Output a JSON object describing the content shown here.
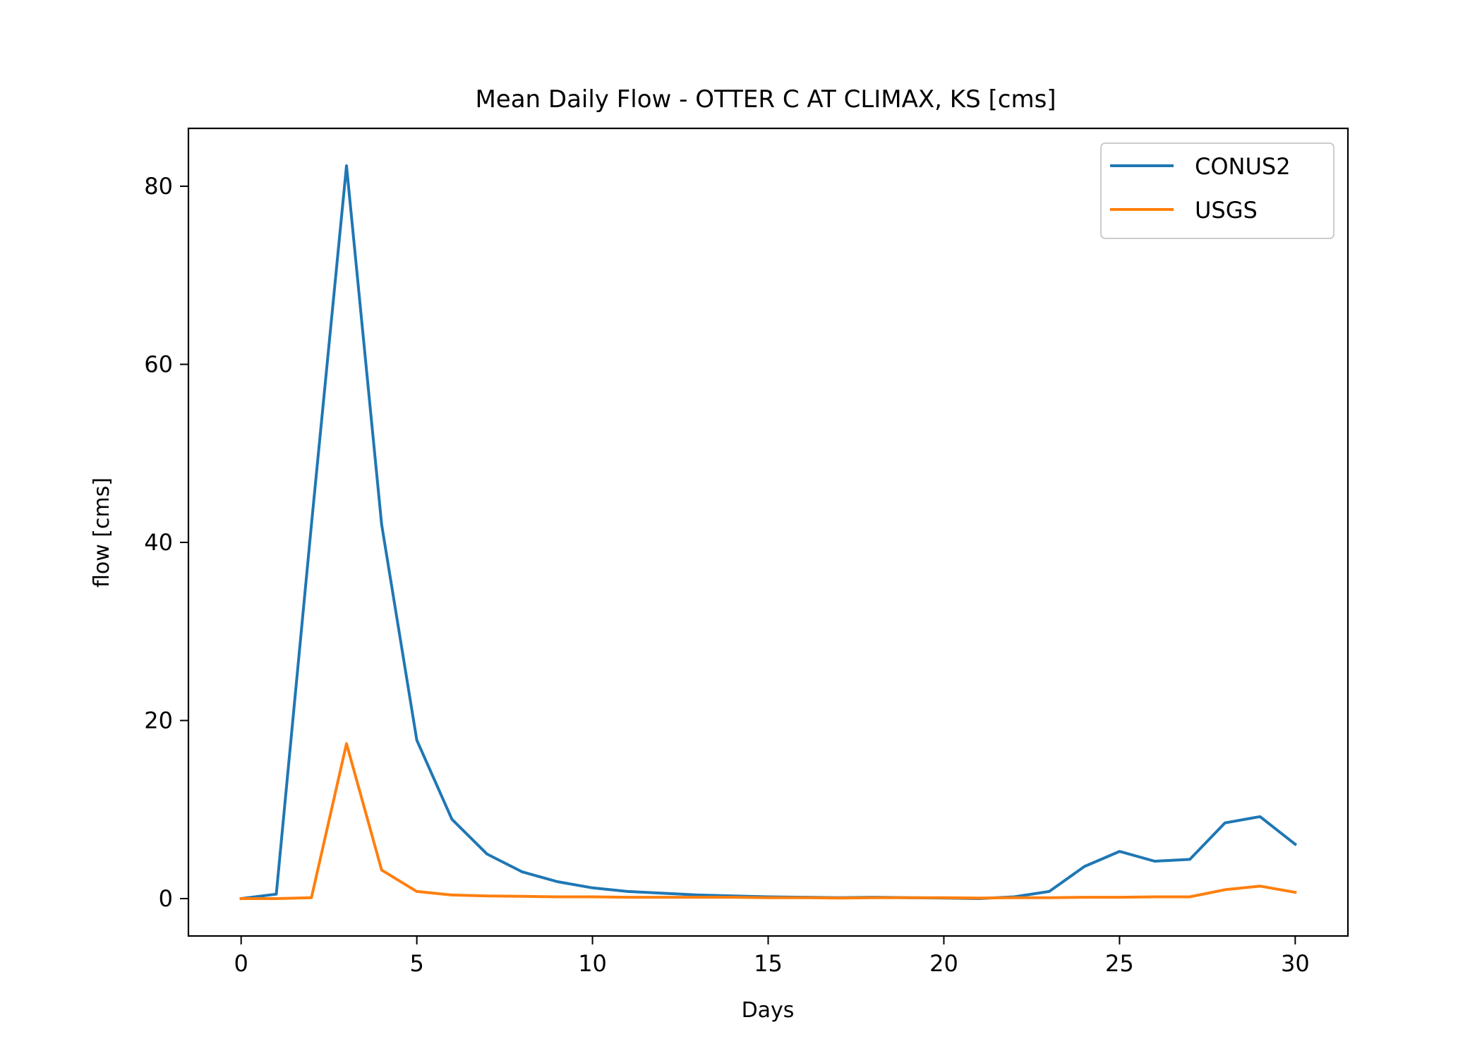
{
  "chart_data": {
    "type": "line",
    "title": "Mean Daily Flow - OTTER C AT CLIMAX, KS [cms]",
    "xlabel": "Days",
    "ylabel": "flow [cms]",
    "xlim": [
      -1.5,
      31.5
    ],
    "ylim": [
      -4.2,
      86.5
    ],
    "xticks": [
      0,
      5,
      10,
      15,
      20,
      25,
      30
    ],
    "yticks": [
      0,
      20,
      40,
      60,
      80
    ],
    "grid": false,
    "legend": "top-right",
    "x": [
      0,
      1,
      2,
      3,
      4,
      5,
      6,
      7,
      8,
      9,
      10,
      11,
      12,
      13,
      14,
      15,
      16,
      17,
      18,
      19,
      20,
      21,
      22,
      23,
      24,
      25,
      26,
      27,
      28,
      29,
      30
    ],
    "series": [
      {
        "name": "CONUS2",
        "color": "#1f77b4",
        "values": [
          0.0,
          0.5,
          42.0,
          82.3,
          42.0,
          17.8,
          8.9,
          5.0,
          3.0,
          1.9,
          1.2,
          0.8,
          0.6,
          0.4,
          0.3,
          0.2,
          0.15,
          0.1,
          0.15,
          0.1,
          0.05,
          0.0,
          0.2,
          0.8,
          3.6,
          5.3,
          4.2,
          4.4,
          8.5,
          9.2,
          6.1
        ]
      },
      {
        "name": "USGS",
        "color": "#ff7f0e",
        "values": [
          0.0,
          0.0,
          0.1,
          17.4,
          3.2,
          0.8,
          0.4,
          0.3,
          0.25,
          0.2,
          0.2,
          0.15,
          0.15,
          0.15,
          0.15,
          0.1,
          0.1,
          0.05,
          0.1,
          0.1,
          0.1,
          0.05,
          0.1,
          0.1,
          0.15,
          0.15,
          0.2,
          0.2,
          1.0,
          1.4,
          0.7
        ]
      }
    ]
  }
}
